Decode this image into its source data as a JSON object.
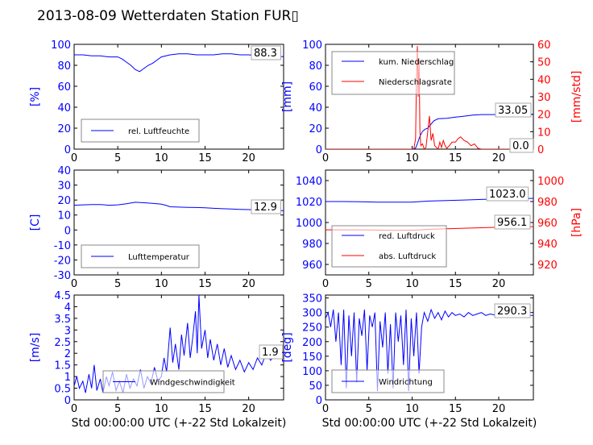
{
  "title": "2013-08-09 Wetterdaten Station FUR",
  "title_glyph": "▯",
  "colors": {
    "primary": "#0000ff",
    "secondary": "#ff0000",
    "text": "#000000",
    "box": "#888888"
  },
  "chart_data": [
    {
      "id": "humidity",
      "type": "line",
      "title": "",
      "xlabel": "",
      "ylabel": "[%]",
      "xlim": [
        0,
        24
      ],
      "ylim": [
        0,
        100
      ],
      "xticks": [
        0,
        5,
        10,
        15,
        20
      ],
      "yticks": [
        0,
        20,
        40,
        60,
        80,
        100
      ],
      "grid": false,
      "legend": "bottom-left",
      "series": [
        {
          "name": "rel. Luftfeuchte",
          "color": "#0000ff",
          "axis": "left",
          "x": [
            0,
            1,
            2,
            3,
            4,
            5,
            5.5,
            6,
            6.5,
            7,
            7.5,
            8,
            8.5,
            9,
            9.5,
            10,
            11,
            12,
            13,
            14,
            15,
            16,
            17,
            18,
            19,
            20,
            21,
            22,
            23,
            24
          ],
          "y": [
            90,
            90,
            89,
            89,
            88,
            88,
            86,
            83,
            80,
            76,
            74,
            77,
            80,
            82,
            85,
            88,
            90,
            91,
            91,
            90,
            90,
            90,
            91,
            91,
            90,
            90,
            89,
            88,
            88.5,
            88.3
          ]
        }
      ],
      "annotations": [
        {
          "text": "88.3"
        }
      ]
    },
    {
      "id": "precip",
      "type": "line",
      "title": "",
      "xlabel": "",
      "ylabel": "[mm]",
      "ylabel2": "[mm/std]",
      "xlim": [
        0,
        24
      ],
      "ylim": [
        0,
        100
      ],
      "ylim2": [
        0,
        60
      ],
      "xticks": [
        0,
        5,
        10,
        15,
        20
      ],
      "yticks": [
        0,
        20,
        40,
        60,
        80,
        100
      ],
      "yticks2": [
        0,
        10,
        20,
        30,
        40,
        50,
        60
      ],
      "grid": false,
      "legend": "top-left",
      "series": [
        {
          "name": "kum. Niederschlag",
          "color": "#0000ff",
          "axis": "left",
          "x": [
            0,
            10,
            10.4,
            10.6,
            10.8,
            11,
            11.2,
            11.5,
            11.8,
            12,
            12.5,
            13,
            14,
            14.5,
            15,
            15.5,
            16,
            17,
            18,
            20,
            22,
            24
          ],
          "y": [
            0,
            0,
            1,
            5,
            10,
            14,
            17,
            19,
            20,
            22,
            27,
            29,
            29.5,
            30,
            30.5,
            31,
            31.5,
            32.5,
            33,
            33,
            33.05,
            33.05
          ]
        },
        {
          "name": "Niederschlagsrate",
          "color": "#ff0000",
          "axis": "right",
          "x": [
            0,
            10.2,
            10.4,
            10.5,
            10.6,
            10.7,
            10.8,
            10.9,
            11.0,
            11.2,
            11.4,
            11.6,
            11.8,
            12.0,
            12.2,
            12.4,
            12.6,
            12.8,
            13.0,
            13.2,
            13.4,
            13.6,
            13.8,
            14.0,
            14.3,
            14.6,
            15.0,
            15.3,
            15.6,
            16.0,
            16.4,
            16.8,
            17.2,
            17.6,
            18.0,
            24
          ],
          "y": [
            0,
            0,
            6,
            40,
            59,
            30,
            52,
            10,
            2,
            3,
            0,
            1,
            10,
            19,
            5,
            9,
            2,
            1,
            0,
            4,
            1,
            5,
            2,
            0.5,
            2,
            4,
            4,
            6,
            7,
            5,
            4,
            2,
            3,
            0.5,
            0,
            0
          ]
        }
      ],
      "annotations": [
        {
          "text": "33.05"
        },
        {
          "text": "0.0"
        }
      ]
    },
    {
      "id": "temperature",
      "type": "line",
      "title": "",
      "xlabel": "",
      "ylabel": "[C]",
      "xlim": [
        0,
        24
      ],
      "ylim": [
        -30,
        40
      ],
      "xticks": [
        0,
        5,
        10,
        15,
        20
      ],
      "yticks": [
        -30,
        -20,
        -10,
        0,
        10,
        20,
        30,
        40
      ],
      "grid": false,
      "legend": "bottom-left",
      "series": [
        {
          "name": "Lufttemperatur",
          "color": "#0000ff",
          "axis": "left",
          "x": [
            0,
            1,
            2,
            3,
            4,
            5,
            6,
            7,
            8,
            9,
            10,
            10.5,
            11,
            12,
            13,
            14,
            15,
            16,
            17,
            18,
            19,
            20,
            21,
            22,
            23,
            24
          ],
          "y": [
            16.5,
            16.8,
            17,
            17,
            16.5,
            16.8,
            17.5,
            18.5,
            18.2,
            17.8,
            17.2,
            16.5,
            15.5,
            15.3,
            15.1,
            15,
            14.8,
            14.5,
            14.2,
            14.0,
            13.8,
            13.6,
            13.5,
            13.3,
            13.0,
            12.9
          ]
        }
      ],
      "annotations": [
        {
          "text": "12.9"
        }
      ]
    },
    {
      "id": "pressure",
      "type": "line",
      "title": "",
      "xlabel": "",
      "ylabel": "",
      "ylabel2": "[hPa]",
      "xlim": [
        0,
        24
      ],
      "ylim": [
        950,
        1050
      ],
      "ylim2": [
        910,
        1010
      ],
      "xticks": [
        0,
        5,
        10,
        15,
        20
      ],
      "yticks": [
        960,
        980,
        1000,
        1020,
        1040
      ],
      "yticks2": [
        920,
        940,
        960,
        980,
        1000
      ],
      "grid": false,
      "legend": "bottom-left",
      "series": [
        {
          "name": "red. Luftdruck",
          "color": "#0000ff",
          "axis": "left",
          "x": [
            0,
            2,
            4,
            6,
            8,
            10,
            11,
            12,
            14,
            16,
            18,
            20,
            22,
            24
          ],
          "y": [
            1020,
            1020,
            1019.8,
            1019.5,
            1019.5,
            1019.5,
            1020,
            1020.5,
            1021,
            1021.5,
            1022,
            1022.5,
            1023,
            1023.0
          ]
        },
        {
          "name": "abs. Luftdruck",
          "color": "#ff0000",
          "axis": "right",
          "x": [
            0,
            2,
            4,
            6,
            8,
            10,
            11,
            12,
            14,
            16,
            18,
            20,
            22,
            24
          ],
          "y": [
            953,
            953,
            953,
            952.8,
            952.5,
            952.7,
            953,
            953.5,
            954,
            954.5,
            955,
            955.5,
            956,
            956.1
          ]
        }
      ],
      "annotations": [
        {
          "text": "1023.0"
        },
        {
          "text": "956.1"
        }
      ]
    },
    {
      "id": "windspeed",
      "type": "line",
      "title": "",
      "xlabel": "Std 00:00:00 UTC (+-22 Std Lokalzeit)",
      "ylabel": "[m/s]",
      "xlim": [
        0,
        24
      ],
      "ylim": [
        0,
        4.5
      ],
      "xticks": [
        0,
        5,
        10,
        15,
        20
      ],
      "yticks": [
        0.0,
        0.5,
        1.0,
        1.5,
        2.0,
        2.5,
        3.0,
        3.5,
        4.0,
        4.5
      ],
      "grid": false,
      "legend": "bottom-left",
      "series": [
        {
          "name": "Windgeschwindigkeit",
          "color": "#0000ff",
          "axis": "left",
          "x": [
            0,
            0.3,
            0.6,
            1.0,
            1.3,
            1.7,
            2.0,
            2.3,
            2.6,
            3.0,
            3.3,
            3.7,
            4.0,
            4.4,
            4.8,
            5.2,
            5.6,
            6.0,
            6.4,
            6.8,
            7.2,
            7.6,
            8.0,
            8.4,
            8.8,
            9.2,
            9.6,
            10.0,
            10.3,
            10.6,
            11.0,
            11.3,
            11.6,
            12.0,
            12.3,
            12.6,
            13.0,
            13.3,
            13.6,
            13.9,
            14.1,
            14.3,
            14.6,
            15.0,
            15.3,
            15.6,
            16.0,
            16.4,
            16.8,
            17.2,
            17.6,
            18.0,
            18.5,
            19.0,
            19.5,
            20.0,
            20.5,
            21.0,
            21.5,
            22.0,
            22.5,
            23.0,
            23.5,
            24.0
          ],
          "y": [
            0.6,
            1.0,
            0.5,
            0.8,
            0.3,
            1.1,
            0.5,
            1.5,
            0.4,
            0.9,
            0.3,
            1.0,
            0.6,
            1.2,
            0.4,
            0.8,
            0.3,
            1.1,
            0.5,
            0.9,
            0.6,
            1.3,
            0.5,
            1.0,
            0.7,
            1.4,
            0.8,
            1.0,
            1.8,
            1.2,
            3.1,
            1.6,
            2.4,
            1.3,
            2.8,
            1.9,
            3.3,
            1.8,
            2.7,
            3.8,
            2.0,
            4.5,
            2.2,
            3.0,
            1.8,
            2.6,
            1.7,
            2.4,
            1.5,
            2.2,
            1.4,
            1.9,
            1.3,
            1.7,
            1.2,
            1.6,
            1.3,
            1.8,
            1.5,
            2.0,
            1.7,
            1.9,
            1.8,
            1.9
          ]
        }
      ],
      "annotations": [
        {
          "text": "1.9"
        }
      ]
    },
    {
      "id": "winddir",
      "type": "line",
      "title": "",
      "xlabel": "Std 00:00:00 UTC (+-22 Std Lokalzeit)",
      "ylabel": "[deg]",
      "xlim": [
        0,
        24
      ],
      "ylim": [
        0,
        360
      ],
      "xticks": [
        0,
        5,
        10,
        15,
        20
      ],
      "yticks": [
        0,
        50,
        100,
        150,
        200,
        250,
        300,
        350
      ],
      "grid": false,
      "legend": "bottom-left",
      "series": [
        {
          "name": "Windrichtung",
          "color": "#0000ff",
          "axis": "left",
          "x": [
            0,
            0.3,
            0.6,
            0.9,
            1.2,
            1.5,
            1.8,
            2.1,
            2.4,
            2.7,
            3.0,
            3.3,
            3.6,
            3.9,
            4.2,
            4.5,
            4.8,
            5.1,
            5.4,
            5.7,
            6.0,
            6.3,
            6.6,
            6.9,
            7.2,
            7.5,
            7.8,
            8.1,
            8.4,
            8.7,
            9.0,
            9.3,
            9.6,
            9.9,
            10.2,
            10.5,
            10.8,
            11.1,
            11.4,
            11.8,
            12.2,
            12.6,
            13.0,
            13.4,
            13.8,
            14.2,
            14.6,
            15.0,
            15.5,
            16.0,
            16.5,
            17.0,
            17.5,
            18.0,
            18.5,
            19.0,
            19.5,
            20.0,
            20.5,
            21.0,
            21.5,
            22.0,
            22.5,
            23.0,
            23.5,
            24.0
          ],
          "y": [
            280,
            300,
            250,
            310,
            200,
            300,
            120,
            310,
            40,
            290,
            150,
            300,
            60,
            280,
            220,
            310,
            100,
            290,
            250,
            300,
            30,
            270,
            180,
            300,
            90,
            260,
            40,
            300,
            200,
            290,
            120,
            310,
            30,
            280,
            150,
            300,
            90,
            250,
            300,
            270,
            310,
            280,
            300,
            275,
            305,
            285,
            300,
            290,
            295,
            285,
            300,
            290,
            295,
            300,
            290,
            295,
            292,
            288,
            294,
            290,
            292,
            291,
            290,
            291,
            290,
            290.3
          ]
        }
      ],
      "annotations": [
        {
          "text": "290.3"
        }
      ]
    }
  ]
}
